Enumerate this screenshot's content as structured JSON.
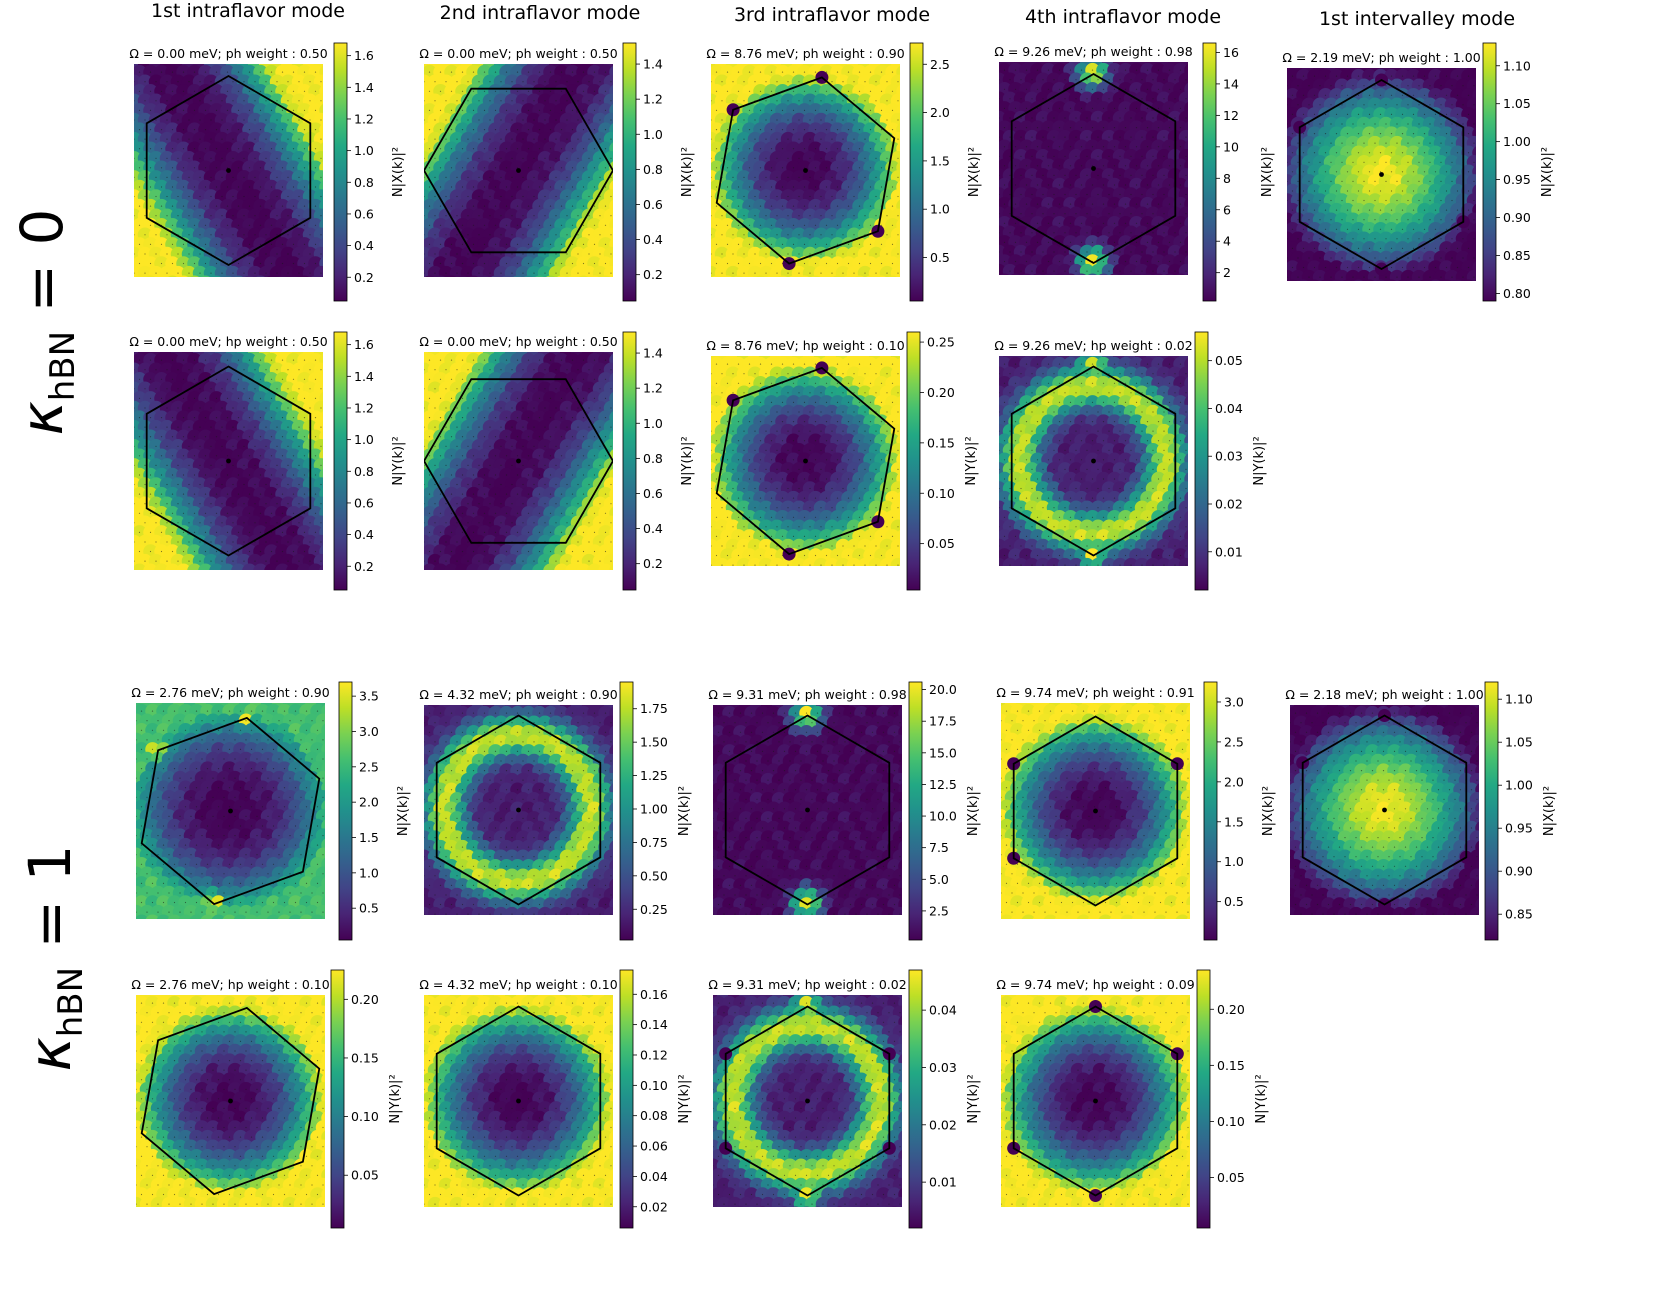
{
  "figure": {
    "row_labels": [
      {
        "main": "κ",
        "sub": "hBN",
        "eq": " = 0"
      },
      {
        "main": "κ",
        "sub": "hBN",
        "eq": " = 1"
      }
    ],
    "column_titles": [
      "1st intraflavor mode",
      "2nd intraflavor mode",
      "3rd intraflavor mode",
      "4th intraflavor mode",
      "1st intervalley mode"
    ],
    "colormap": [
      "#440154",
      "#482475",
      "#414487",
      "#355f8d",
      "#2a788e",
      "#21918c",
      "#22a884",
      "#44bf70",
      "#7ad151",
      "#bddf26",
      "#fde725"
    ],
    "hexagon_color": "#000000"
  },
  "chart_data": [
    {
      "type": "heatmap",
      "title": "Ω = 0.00 meV;  ph weight : 0.50",
      "colorbar_label": "N|X(k)|²",
      "colorbar_ticks": [
        "0.2",
        "0.4",
        "0.6",
        "0.8",
        "1.0",
        "1.2",
        "1.4",
        "1.6"
      ],
      "vmin": 0.05,
      "vmax": 1.68,
      "pattern": "band",
      "band_angle": 150,
      "hex_rotation": 0,
      "hot_corners": [],
      "dark_corners": []
    },
    {
      "type": "heatmap",
      "title": "Ω = 0.00 meV;  ph weight : 0.50",
      "colorbar_label": "N|X(k)|²",
      "colorbar_ticks": [
        "0.2",
        "0.4",
        "0.6",
        "0.8",
        "1.0",
        "1.2",
        "1.4"
      ],
      "vmin": 0.05,
      "vmax": 1.52,
      "pattern": "band",
      "band_angle": 30,
      "hex_rotation": 30,
      "hot_corners": [],
      "dark_corners": []
    },
    {
      "type": "heatmap",
      "title": "Ω = 8.76 meV;  ph weight : 0.90",
      "colorbar_label": "N|X(k)|²",
      "colorbar_ticks": [
        "0.5",
        "1.0",
        "1.5",
        "2.0",
        "2.5"
      ],
      "vmin": 0.05,
      "vmax": 2.72,
      "pattern": "rim",
      "band_angle": 0,
      "hex_rotation": 10,
      "hot_corners": [
        1,
        4
      ],
      "dark_corners": [
        0,
        2,
        3,
        5
      ]
    },
    {
      "type": "heatmap",
      "title": "Ω = 9.26 meV;  ph weight : 0.98",
      "colorbar_label": "N|X(k)|²",
      "colorbar_ticks": [
        "2",
        "4",
        "6",
        "8",
        "10",
        "12",
        "14",
        "16"
      ],
      "vmin": 0.2,
      "vmax": 16.6,
      "pattern": "spots",
      "band_angle": 0,
      "hex_rotation": 0,
      "hot_corners": [
        0,
        3
      ],
      "dark_corners": []
    },
    {
      "type": "heatmap",
      "title": "Ω = 2.19 meV;  ph weight : 1.00",
      "colorbar_label": "N|X(k)|²",
      "colorbar_ticks": [
        "0.80",
        "0.85",
        "0.90",
        "0.95",
        "1.00",
        "1.05",
        "1.10"
      ],
      "vmin": 0.79,
      "vmax": 1.13,
      "pattern": "center",
      "band_angle": 0,
      "hex_rotation": 0,
      "hot_corners": [],
      "dark_corners": [
        0,
        2,
        3,
        5
      ]
    },
    {
      "type": "heatmap",
      "title": "Ω = 0.00 meV;  hp weight : 0.50",
      "colorbar_label": "N|Y(k)|²",
      "colorbar_ticks": [
        "0.2",
        "0.4",
        "0.6",
        "0.8",
        "1.0",
        "1.2",
        "1.4",
        "1.6"
      ],
      "vmin": 0.05,
      "vmax": 1.68,
      "pattern": "band",
      "band_angle": 150,
      "hex_rotation": 0,
      "hot_corners": [],
      "dark_corners": []
    },
    {
      "type": "heatmap",
      "title": "Ω = 0.00 meV;  hp weight : 0.50",
      "colorbar_label": "N|Y(k)|²",
      "colorbar_ticks": [
        "0.2",
        "0.4",
        "0.6",
        "0.8",
        "1.0",
        "1.2",
        "1.4"
      ],
      "vmin": 0.05,
      "vmax": 1.52,
      "pattern": "band",
      "band_angle": 30,
      "hex_rotation": 30,
      "hot_corners": [],
      "dark_corners": []
    },
    {
      "type": "heatmap",
      "title": "Ω = 8.76 meV;  hp weight : 0.10",
      "colorbar_label": "N|Y(k)|²",
      "colorbar_ticks": [
        "0.05",
        "0.10",
        "0.15",
        "0.20",
        "0.25"
      ],
      "vmin": 0.004,
      "vmax": 0.26,
      "pattern": "rim",
      "band_angle": 0,
      "hex_rotation": 10,
      "hot_corners": [
        1,
        4
      ],
      "dark_corners": [
        0,
        2,
        3,
        5
      ]
    },
    {
      "type": "heatmap",
      "title": "Ω = 9.26 meV;  hp weight : 0.02",
      "colorbar_label": "N|Y(k)|²",
      "colorbar_ticks": [
        "0.01",
        "0.02",
        "0.03",
        "0.04",
        "0.05"
      ],
      "vmin": 0.002,
      "vmax": 0.056,
      "pattern": "ring",
      "band_angle": 0,
      "hex_rotation": 0,
      "hot_corners": [
        0,
        3
      ],
      "dark_corners": []
    },
    {
      "type": "heatmap",
      "title": "Ω = 2.76 meV;  ph weight : 0.90",
      "colorbar_label": "N|X(k)|²",
      "colorbar_ticks": [
        "0.5",
        "1.0",
        "1.5",
        "2.0",
        "2.5",
        "3.0",
        "3.5"
      ],
      "vmin": 0.05,
      "vmax": 3.7,
      "pattern": "rimweak",
      "band_angle": 0,
      "hex_rotation": 10,
      "hot_corners": [
        0,
        3,
        5
      ],
      "dark_corners": []
    },
    {
      "type": "heatmap",
      "title": "Ω = 4.32 meV;  ph weight : 0.90",
      "colorbar_label": "N|X(k)|²",
      "colorbar_ticks": [
        "0.25",
        "0.50",
        "0.75",
        "1.00",
        "1.25",
        "1.50",
        "1.75"
      ],
      "vmin": 0.02,
      "vmax": 1.95,
      "pattern": "ring",
      "band_angle": 0,
      "hex_rotation": 0,
      "hot_corners": [],
      "dark_corners": []
    },
    {
      "type": "heatmap",
      "title": "Ω = 9.31 meV;  ph weight : 0.98",
      "colorbar_label": "N|X(k)|²",
      "colorbar_ticks": [
        "2.5",
        "5.0",
        "7.5",
        "10.0",
        "12.5",
        "15.0",
        "17.5",
        "20.0"
      ],
      "vmin": 0.2,
      "vmax": 20.6,
      "pattern": "spots",
      "band_angle": 0,
      "hex_rotation": 0,
      "hot_corners": [
        0,
        3
      ],
      "dark_corners": []
    },
    {
      "type": "heatmap",
      "title": "Ω = 9.74 meV;  ph weight : 0.91",
      "colorbar_label": "N|X(k)|²",
      "colorbar_ticks": [
        "0.5",
        "1.0",
        "1.5",
        "2.0",
        "2.5",
        "3.0"
      ],
      "vmin": 0.02,
      "vmax": 3.25,
      "pattern": "rim",
      "band_angle": 0,
      "hex_rotation": 0,
      "hot_corners": [
        0,
        2,
        3
      ],
      "dark_corners": [
        1,
        4,
        5
      ]
    },
    {
      "type": "heatmap",
      "title": "Ω = 2.18 meV;  ph weight : 1.00",
      "colorbar_label": "N|X(k)|²",
      "colorbar_ticks": [
        "0.85",
        "0.90",
        "0.95",
        "1.00",
        "1.05",
        "1.10"
      ],
      "vmin": 0.82,
      "vmax": 1.12,
      "pattern": "center",
      "band_angle": 0,
      "hex_rotation": 0,
      "hot_corners": [],
      "dark_corners": [
        0,
        2,
        3,
        5
      ]
    },
    {
      "type": "heatmap",
      "title": "Ω = 2.76 meV;  hp weight : 0.10",
      "colorbar_label": "N|Y(k)|²",
      "colorbar_ticks": [
        "0.05",
        "0.10",
        "0.15",
        "0.20"
      ],
      "vmin": 0.005,
      "vmax": 0.225,
      "pattern": "rim",
      "band_angle": 0,
      "hex_rotation": 10,
      "hot_corners": [
        1,
        4
      ],
      "dark_corners": []
    },
    {
      "type": "heatmap",
      "title": "Ω = 4.32 meV;  hp weight : 0.10",
      "colorbar_label": "N|Y(k)|²",
      "colorbar_ticks": [
        "0.02",
        "0.04",
        "0.06",
        "0.08",
        "0.10",
        "0.12",
        "0.14",
        "0.16"
      ],
      "vmin": 0.006,
      "vmax": 0.176,
      "pattern": "rim",
      "band_angle": 0,
      "hex_rotation": 0,
      "hot_corners": [],
      "dark_corners": []
    },
    {
      "type": "heatmap",
      "title": "Ω = 9.31 meV;  hp weight : 0.02",
      "colorbar_label": "N|Y(k)|²",
      "colorbar_ticks": [
        "0.01",
        "0.02",
        "0.03",
        "0.04"
      ],
      "vmin": 0.002,
      "vmax": 0.047,
      "pattern": "ring",
      "band_angle": 0,
      "hex_rotation": 0,
      "hot_corners": [
        0,
        3
      ],
      "dark_corners": [
        1,
        2,
        4,
        5
      ]
    },
    {
      "type": "heatmap",
      "title": "Ω = 9.74 meV;  hp weight : 0.09",
      "colorbar_label": "N|Y(k)|²",
      "colorbar_ticks": [
        "0.05",
        "0.10",
        "0.15",
        "0.20"
      ],
      "vmin": 0.005,
      "vmax": 0.235,
      "pattern": "rim",
      "band_angle": 0,
      "hex_rotation": 0,
      "hot_corners": [
        2,
        5
      ],
      "dark_corners": [
        0,
        1,
        3,
        4
      ]
    }
  ]
}
